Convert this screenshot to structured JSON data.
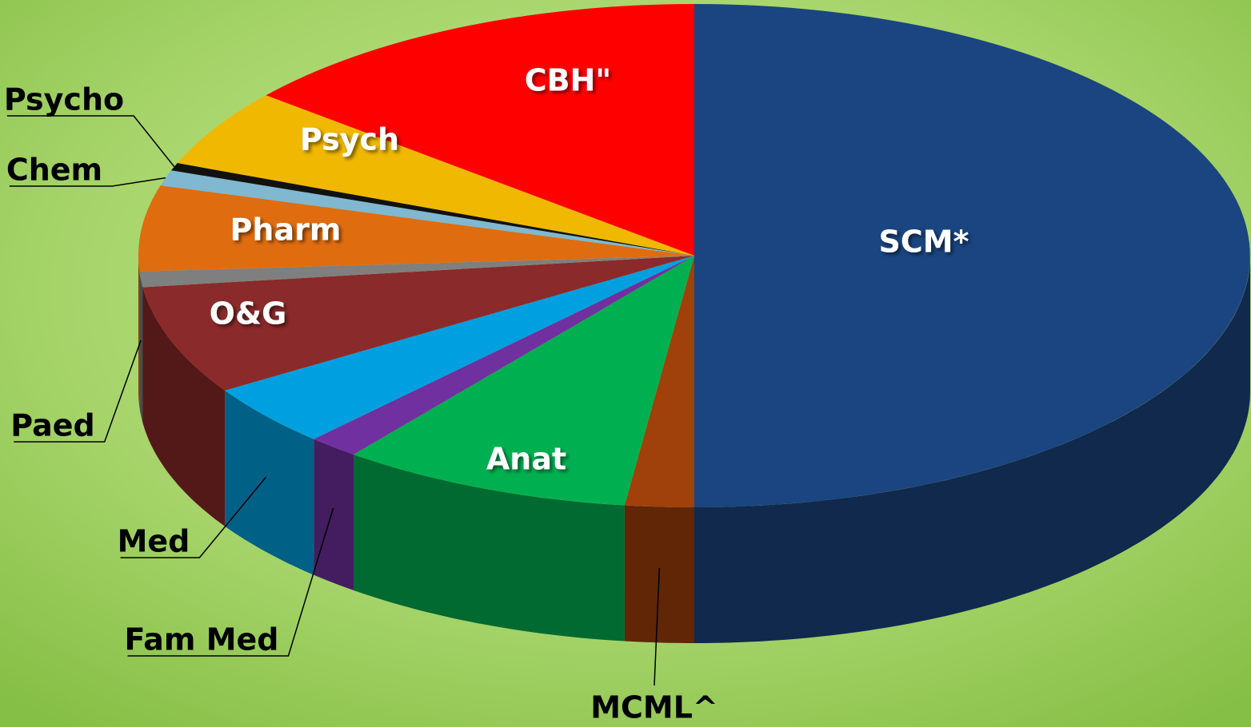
{
  "chart_data": {
    "type": "pie3d",
    "categories": [
      "SCM*",
      "MCML^",
      "Anat",
      "Fam Med",
      "Med",
      "O&G",
      "Paed",
      "Pharm",
      "Chem",
      "Psycho",
      "Psych",
      "CBH\""
    ],
    "values": [
      50,
      2,
      8.5,
      1.5,
      4,
      7,
      1,
      5.5,
      1,
      0.5,
      5,
      14
    ],
    "colors": [
      "#1a4580",
      "#a0400a",
      "#00b050",
      "#7030a0",
      "#00a0e0",
      "#8b2a2a",
      "#7f7f7f",
      "#e06c10",
      "#7fb8d0",
      "#111111",
      "#f0b800",
      "#ff0000"
    ]
  }
}
